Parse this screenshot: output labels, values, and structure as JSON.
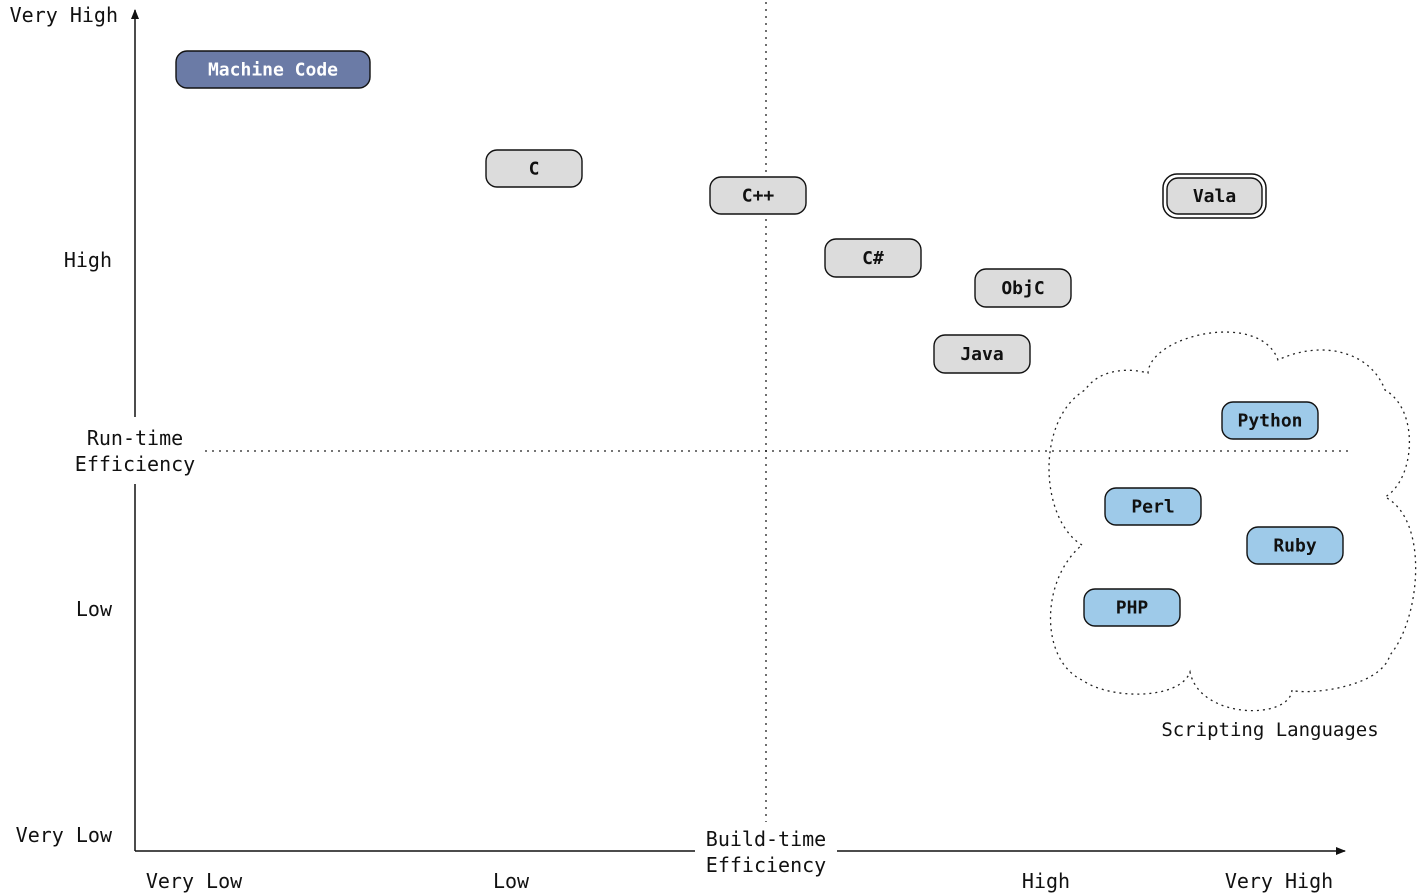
{
  "axes": {
    "y_title": [
      "Run-time",
      "Efficiency"
    ],
    "x_title": [
      "Build-time",
      "Efficiency"
    ],
    "y_ticks": [
      "Very High",
      "High",
      "Low",
      "Very Low"
    ],
    "x_ticks": [
      "Very Low",
      "Low",
      "High",
      "Very High"
    ]
  },
  "colors": {
    "machine_code": "#6b7ba6",
    "compiled": "#dcdcdc",
    "scripting": "#9ecae9",
    "stroke": "#111111"
  },
  "languages": [
    {
      "label": "Machine Code",
      "group": "machine_code"
    },
    {
      "label": "C",
      "group": "compiled"
    },
    {
      "label": "C++",
      "group": "compiled"
    },
    {
      "label": "C#",
      "group": "compiled"
    },
    {
      "label": "ObjC",
      "group": "compiled"
    },
    {
      "label": "Java",
      "group": "compiled"
    },
    {
      "label": "Vala",
      "group": "compiled",
      "double_border": true
    },
    {
      "label": "Python",
      "group": "scripting"
    },
    {
      "label": "Perl",
      "group": "scripting"
    },
    {
      "label": "Ruby",
      "group": "scripting"
    },
    {
      "label": "PHP",
      "group": "scripting"
    }
  ],
  "cloud_label": "Scripting Languages"
}
